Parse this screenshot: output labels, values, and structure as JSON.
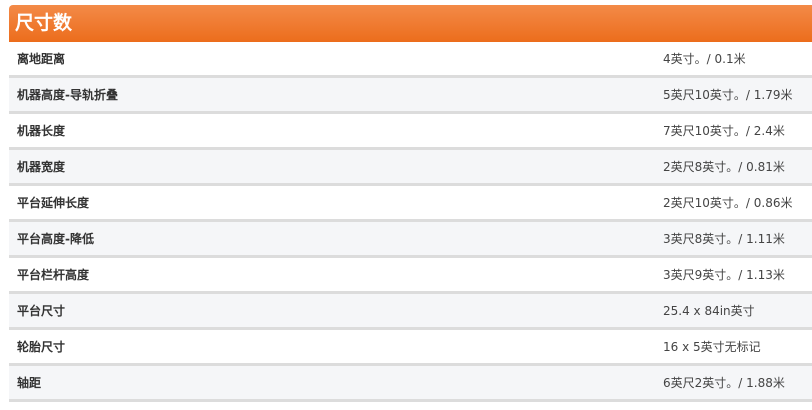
{
  "title": "尺寸数",
  "colors": {
    "header": "#ec6d1c",
    "row_alt": "#f5f6f8",
    "divider": "#dcdcdc"
  },
  "rows": [
    {
      "label": "离地距离",
      "value": "4英寸。/ 0.1米"
    },
    {
      "label": "机器高度-导轨折叠",
      "value": "5英尺10英寸。/ 1.79米"
    },
    {
      "label": "机器长度",
      "value": "7英尺10英寸。/ 2.4米"
    },
    {
      "label": "机器宽度",
      "value": "2英尺8英寸。/ 0.81米"
    },
    {
      "label": "平台延伸长度",
      "value": "2英尺10英寸。/ 0.86米"
    },
    {
      "label": "平台高度-降低",
      "value": "3英尺8英寸。/ 1.11米"
    },
    {
      "label": "平台栏杆高度",
      "value": "3英尺9英寸。/ 1.13米"
    },
    {
      "label": "平台尺寸",
      "value": "25.4 x 84in英寸"
    },
    {
      "label": "轮胎尺寸",
      "value": "16 x 5英寸无标记"
    },
    {
      "label": "轴距",
      "value": "6英尺2英寸。/ 1.88米"
    }
  ]
}
